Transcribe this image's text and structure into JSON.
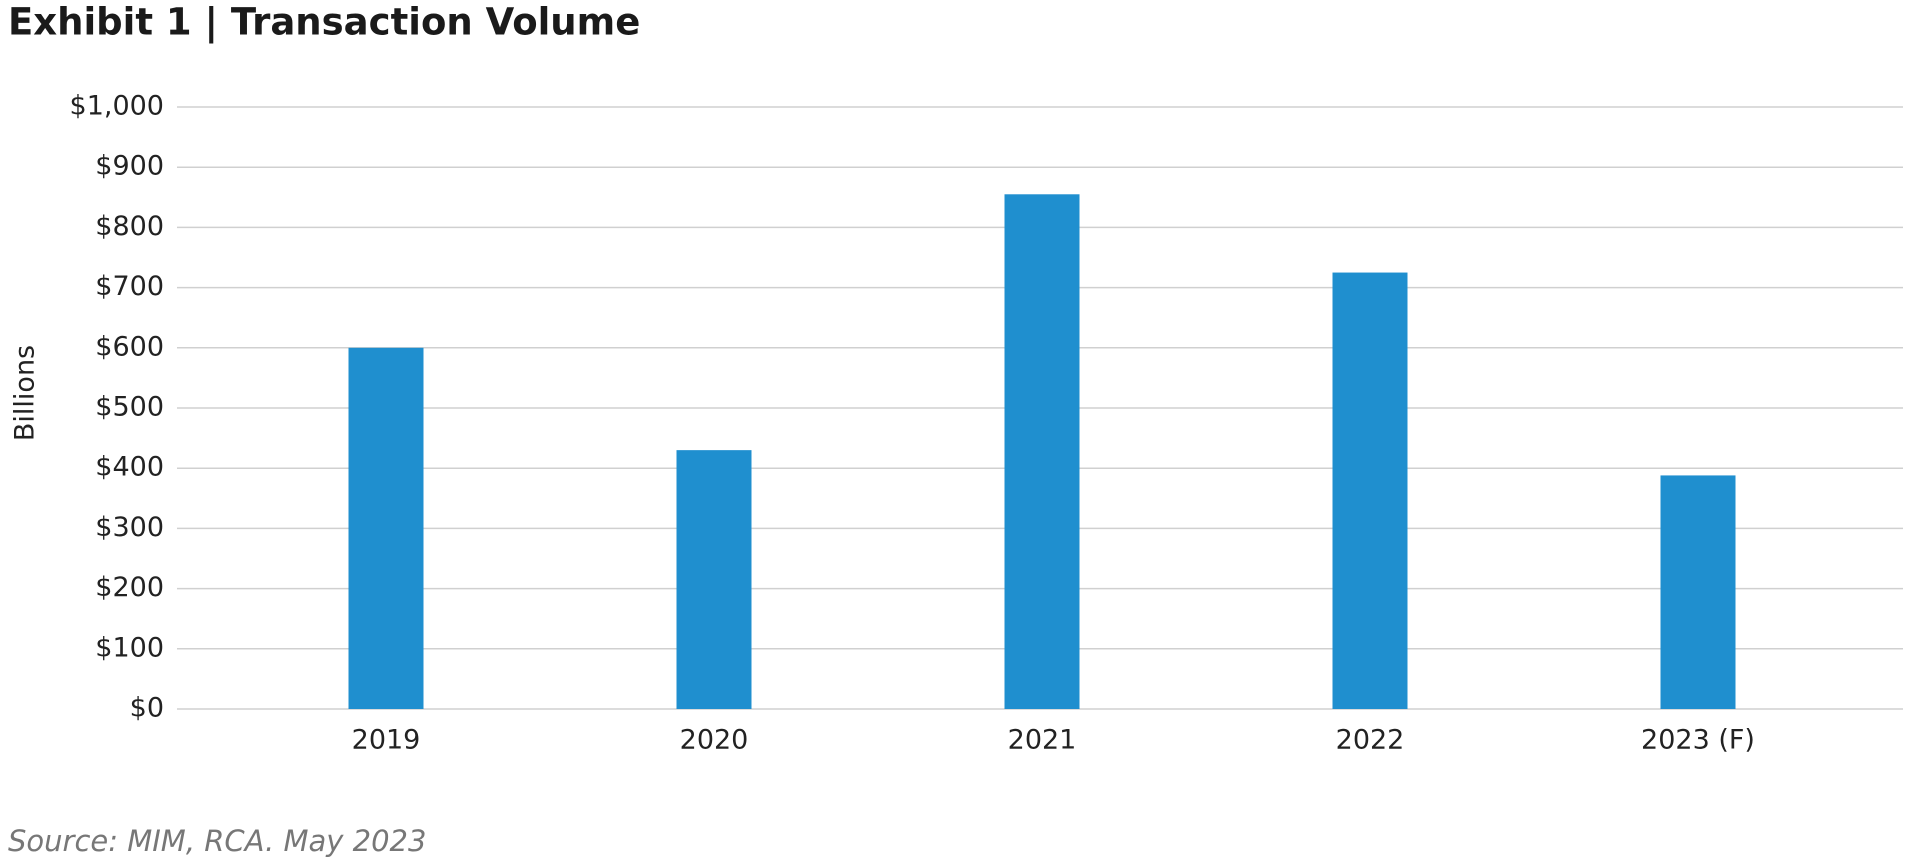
{
  "chart_data": {
    "type": "bar",
    "title": "Exhibit 1 | Transaction Volume",
    "ylabel": "Billions",
    "source": "Source: MIM, RCA. May 2023",
    "categories": [
      "2019",
      "2020",
      "2021",
      "2022",
      "2023 (F)"
    ],
    "values": [
      600,
      430,
      855,
      725,
      388
    ],
    "color": "#1f8fcf",
    "ylim": [
      0,
      1000
    ],
    "yticks": [
      {
        "value": 0,
        "label": "$0"
      },
      {
        "value": 100,
        "label": "$100"
      },
      {
        "value": 200,
        "label": "$200"
      },
      {
        "value": 300,
        "label": "$300"
      },
      {
        "value": 400,
        "label": "$400"
      },
      {
        "value": 500,
        "label": "$500"
      },
      {
        "value": 600,
        "label": "$600"
      },
      {
        "value": 700,
        "label": "$700"
      },
      {
        "value": 800,
        "label": "$800"
      },
      {
        "value": 900,
        "label": "$900"
      },
      {
        "value": 1000,
        "label": "$1,000"
      }
    ],
    "grid": true
  }
}
